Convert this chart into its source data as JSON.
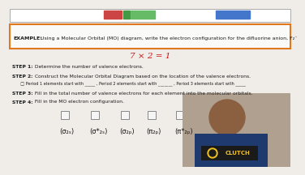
{
  "bg_color": "#f0ede8",
  "top_bar_color": "#ffffff",
  "top_bar_border": "#aaaaaa",
  "example_box_border": "#e07820",
  "example_box_bg": "#fafaf8",
  "example_text_bold": "EXAMPLE:",
  "example_text_rest": " Using a Molecular Orbital (MO) diagram, write the electron configuration for the difluorine anion, F₂⁻",
  "red_formula": "7 × 2 = 1",
  "step1_bold": "STEP 1:",
  "step1_rest": " Determine the number of valence electrons.",
  "step2_bold": "STEP 2:",
  "step2_rest": " Construct the Molecular Orbital Diagram based on the location of the valence electrons.",
  "step2_sub": "  □ Period 1 elements start with _____ , Period 2 elements start with _______ , Period 3 elements start with _____",
  "step3_bold": "STEP 3:",
  "step3_rest": " Fill in the total number of valence electrons for each element into the molecular orbitals.",
  "step4_bold": "STEP 4:",
  "step4_rest": " Fill in the MO electron configuration.",
  "mo_labels": [
    "(σ₂ₛ)",
    "(σ*₂ₛ)",
    "(σ₂ₚ)",
    "(π₂ₚ)",
    "(π*₂ₚ)"
  ],
  "text_color": "#1a1a1a",
  "red_color": "#cc1111",
  "btn1_color": "#cc4444",
  "btn2_color": "#449944",
  "btn3_color": "#66bb66",
  "btn4_color": "#4477cc",
  "person_skin": "#8a6040",
  "person_shirt": "#1e3a6e",
  "clutch_bg": "#1a1a1a",
  "clutch_text": "#f0c020"
}
